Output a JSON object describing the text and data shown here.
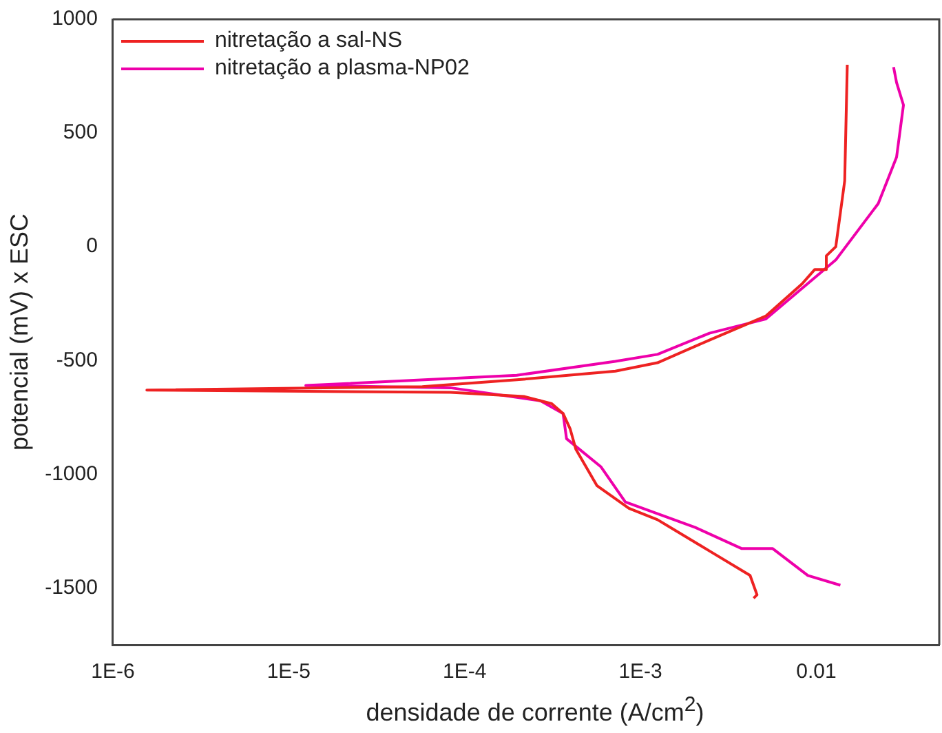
{
  "chart_data": {
    "type": "line",
    "xlabel": "densidade de corrente (A/cm$^{2}$)",
    "ylabel": "potencial (mV) x ESC",
    "log": "x",
    "legend": "top left",
    "marker": "none",
    "line_style": "solid",
    "xlim": [
      1e-06,
      0.05
    ],
    "xticks": [
      {
        "value": 1e-06,
        "label": "1E-6"
      },
      {
        "value": 1e-05,
        "label": "1E-5"
      },
      {
        "value": 0.0001,
        "label": "1E-4"
      },
      {
        "value": 0.001,
        "label": "1E-3"
      },
      {
        "value": 0.01,
        "label": "0.01"
      }
    ],
    "ylim": [
      -1750,
      1000
    ],
    "yticks": [
      -1500,
      -1000,
      -500,
      0,
      500,
      1000
    ],
    "series": [
      {
        "name": "nitretação a sal-NS",
        "color": "#ee2222",
        "x": [
          0.0044,
          0.0046,
          0.0042,
          0.0025,
          0.00125,
          0.00086,
          0.000565,
          0.000429,
          0.000398,
          0.000363,
          0.000313,
          0.000217,
          8.3e-05,
          1.56e-06,
          5.75e-05,
          0.000198,
          0.00072,
          0.00125,
          0.00247,
          0.00515,
          0.0083,
          0.0098,
          0.0114,
          0.0114,
          0.0129,
          0.0145,
          0.015
        ],
        "values": [
          -1545,
          -1530,
          -1445,
          -1340,
          -1200,
          -1150,
          -1050,
          -890,
          -800,
          -733,
          -690,
          -658,
          -640,
          -630,
          -615,
          -585,
          -547,
          -510,
          -410,
          -305,
          -163,
          -100,
          -100,
          -40,
          0,
          290,
          800
        ]
      },
      {
        "name": "nitretação a plasma-NP02",
        "color": "#ee00aa",
        "x": [
          0.0137,
          0.00895,
          0.00565,
          0.00377,
          0.00205,
          0.00082,
          0.000597,
          0.00038,
          0.000363,
          0.00027,
          8.3e-05,
          1.25e-05,
          0.000198,
          0.00072,
          0.00125,
          0.00247,
          0.00515,
          0.0129,
          0.0225,
          0.0286,
          0.0313,
          0.0286,
          0.0275
        ],
        "values": [
          -1488,
          -1445,
          -1327,
          -1327,
          -1234,
          -1122,
          -968,
          -844,
          -733,
          -677,
          -620,
          -610,
          -565,
          -504,
          -473,
          -380,
          -318,
          -58,
          190,
          394,
          623,
          722,
          790
        ]
      }
    ]
  }
}
